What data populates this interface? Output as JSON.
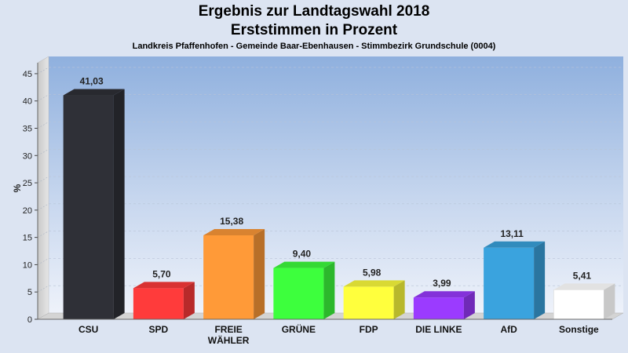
{
  "titles": {
    "line1": "Ergebnis zur Landtagswahl 2018",
    "line2": "Erststimmen in Prozent",
    "subtitle": "Landkreis Pfaffenhofen - Gemeinde Baar-Ebenhausen - Stimmbezirk Grundschule (0004)"
  },
  "chart_data": {
    "type": "bar",
    "title": "Ergebnis zur Landtagswahl 2018 Erststimmen in Prozent",
    "subtitle": "Landkreis Pfaffenhofen - Gemeinde Baar-Ebenhausen - Stimmbezirk Grundschule (0004)",
    "xlabel": "",
    "ylabel": "%",
    "ylim": [
      0,
      47
    ],
    "yticks": [
      0,
      5,
      10,
      15,
      20,
      25,
      30,
      35,
      40,
      45
    ],
    "grid": true,
    "categories": [
      "CSU",
      "SPD",
      "FREIE WÄHLER",
      "GRÜNE",
      "FDP",
      "DIE LINKE",
      "AfD",
      "Sonstige"
    ],
    "category_lines": [
      [
        "CSU"
      ],
      [
        "SPD"
      ],
      [
        "FREIE",
        "WÄHLER"
      ],
      [
        "GRÜNE"
      ],
      [
        "FDP"
      ],
      [
        "DIE LINKE"
      ],
      [
        "AfD"
      ],
      [
        "Sonstige"
      ]
    ],
    "values": [
      41.03,
      5.7,
      15.38,
      9.4,
      5.98,
      3.99,
      13.11,
      5.41
    ],
    "value_labels": [
      "41,03",
      "5,70",
      "15,38",
      "9,40",
      "5,98",
      "3,99",
      "13,11",
      "5,41"
    ],
    "colors": [
      "#2f3037",
      "#ff3b3b",
      "#ff9a38",
      "#3dff3d",
      "#ffff3d",
      "#9b3bff",
      "#3aa3de",
      "#ffffff"
    ]
  }
}
